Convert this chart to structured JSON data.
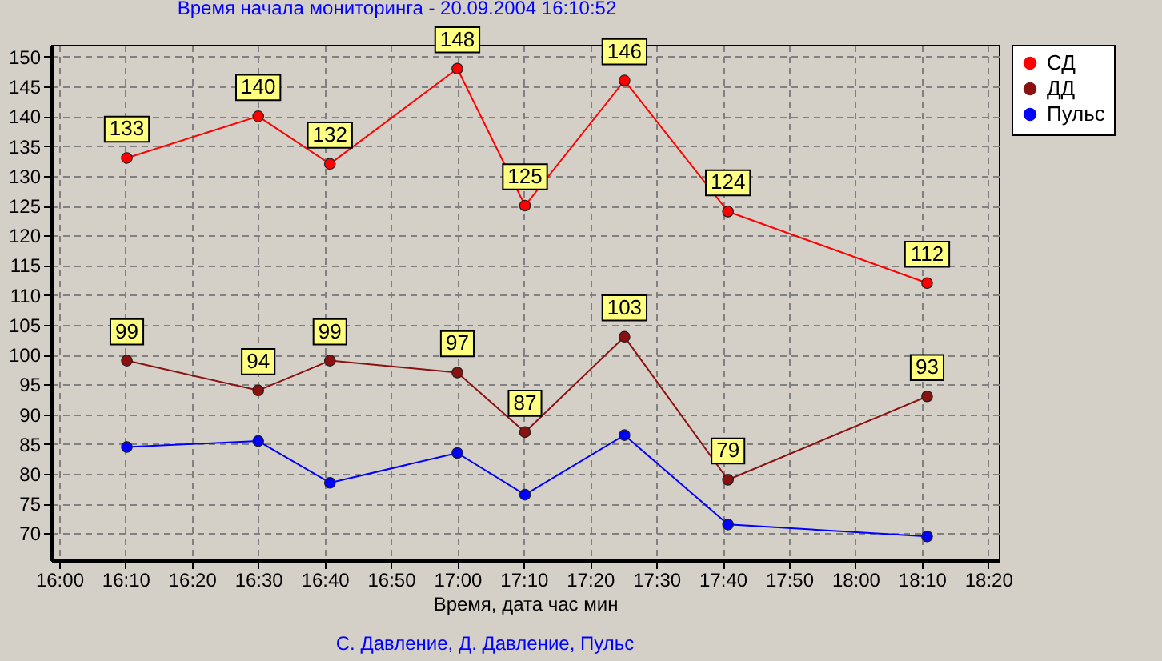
{
  "chart_data": {
    "type": "line",
    "title": "Время начала мониторинга  - 20.09.2004 16:10:52",
    "xlabel": "Время, дата час мин",
    "annotations": [
      "С. Давление, Д. Давление,  Пульс"
    ],
    "x": [
      16.17,
      16.5,
      16.68,
      17.0,
      17.17,
      17.42,
      17.68,
      18.18
    ],
    "series": [
      {
        "name": "СД",
        "color": "#ff0000",
        "values": [
          133,
          140,
          132,
          148,
          125,
          146,
          124,
          112
        ],
        "value_labels": [
          "133",
          "140",
          "132",
          "148",
          "125",
          "146",
          "124",
          "112"
        ]
      },
      {
        "name": "ДД",
        "color": "#8b1010",
        "values": [
          99,
          94,
          99,
          97,
          87,
          103,
          79,
          93
        ],
        "value_labels": [
          "99",
          "94",
          "99",
          "97",
          "87",
          "103",
          "79",
          "93"
        ]
      },
      {
        "name": "Пульс",
        "color": "#0000ff",
        "values": [
          84.5,
          85.5,
          78.5,
          83.5,
          76.5,
          86.5,
          71.5,
          69.5
        ]
      }
    ],
    "xlim": [
      15.98,
      18.36
    ],
    "xticks": [
      {
        "value": 16,
        "label": "16:00"
      },
      {
        "value": 16.1667,
        "label": "16:10"
      },
      {
        "value": 16.3333,
        "label": "16:20"
      },
      {
        "value": 16.5,
        "label": "16:30"
      },
      {
        "value": 16.6667,
        "label": "16:40"
      },
      {
        "value": 16.8333,
        "label": "16:50"
      },
      {
        "value": 17,
        "label": "17:00"
      },
      {
        "value": 17.1667,
        "label": "17:10"
      },
      {
        "value": 17.3333,
        "label": "17:20"
      },
      {
        "value": 17.5,
        "label": "17:30"
      },
      {
        "value": 17.6667,
        "label": "17:40"
      },
      {
        "value": 17.8333,
        "label": "17:50"
      },
      {
        "value": 18,
        "label": "18:00"
      },
      {
        "value": 18.1667,
        "label": "18:10"
      },
      {
        "value": 18.3333,
        "label": "18:20"
      }
    ],
    "ylim": [
      65.5,
      152
    ],
    "yticks": [
      70,
      75,
      80,
      85,
      90,
      95,
      100,
      105,
      110,
      115,
      120,
      125,
      130,
      135,
      140,
      145,
      150
    ],
    "grid": true,
    "legend": "top right",
    "marker": "circle",
    "line_style": "solid"
  }
}
